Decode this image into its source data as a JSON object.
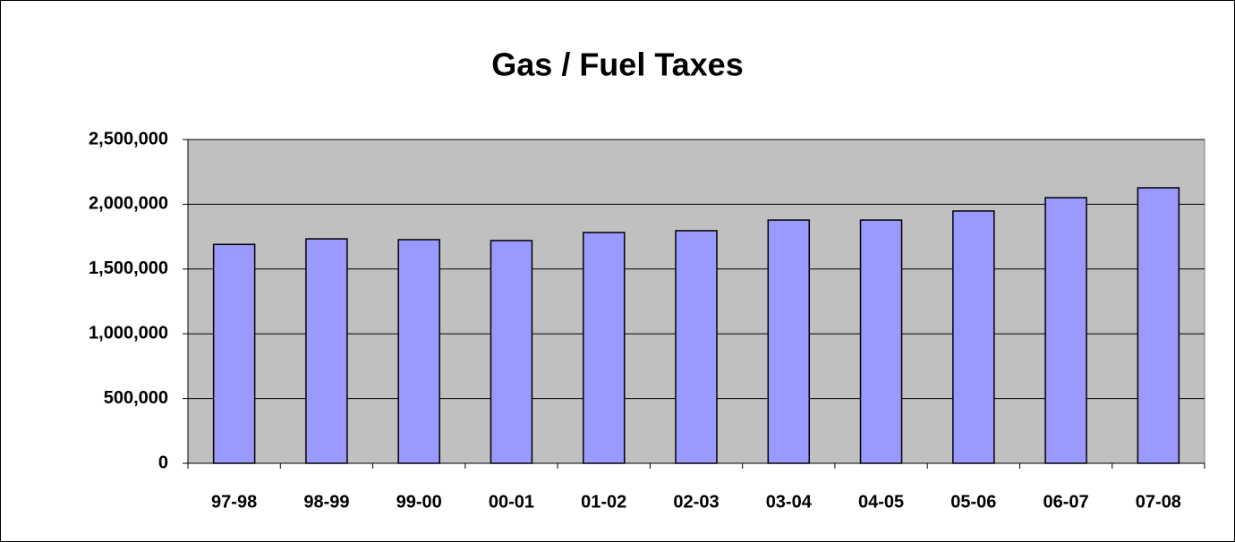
{
  "chart_data": {
    "type": "bar",
    "title": "Gas / Fuel Taxes",
    "categories": [
      "97-98",
      "98-99",
      "99-00",
      "00-01",
      "01-02",
      "02-03",
      "03-04",
      "04-05",
      "05-06",
      "06-07",
      "07-08"
    ],
    "values": [
      1690000,
      1733000,
      1727000,
      1720000,
      1782000,
      1796000,
      1878000,
      1878000,
      1948000,
      2051000,
      2127000
    ],
    "color": "#9999ff",
    "ylim": [
      0,
      2500000
    ],
    "yticks": [
      0,
      {
        "value": 500000,
        "label": "500,000"
      },
      {
        "value": 1000000,
        "label": "1,000,000"
      },
      {
        "value": 1500000,
        "label": "1,500,000"
      },
      {
        "value": 2000000,
        "label": "2,000,000"
      },
      {
        "value": 2500000,
        "label": "2,500,000"
      }
    ],
    "grid": true
  }
}
